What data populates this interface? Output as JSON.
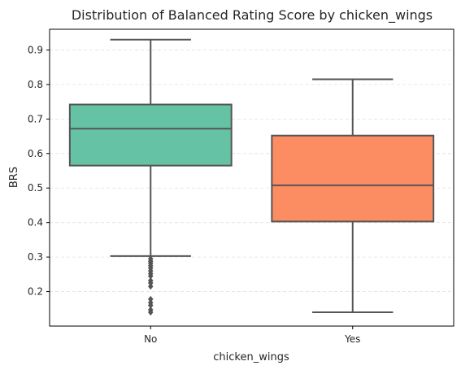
{
  "chart_data": {
    "type": "box",
    "title": "Distribution of Balanced Rating Score by chicken_wings",
    "xlabel": "chicken_wings",
    "ylabel": "BRS",
    "categories": [
      "No",
      "Yes"
    ],
    "ylim": [
      0.1,
      0.96
    ],
    "yticks": [
      0.2,
      0.3,
      0.4,
      0.5,
      0.6,
      0.7,
      0.8,
      0.9
    ],
    "grid": "y dashed",
    "colors": [
      "#66c2a5",
      "#fc8d62"
    ],
    "line_color": "#555555",
    "boxes": [
      {
        "category": "No",
        "whisker_low": 0.303,
        "q1": 0.565,
        "median": 0.672,
        "q3": 0.742,
        "whisker_high": 0.93,
        "outliers": [
          0.295,
          0.288,
          0.282,
          0.275,
          0.268,
          0.26,
          0.252,
          0.245,
          0.232,
          0.225,
          0.215,
          0.178,
          0.168,
          0.16,
          0.147,
          0.14
        ]
      },
      {
        "category": "Yes",
        "whisker_low": 0.14,
        "q1": 0.403,
        "median": 0.508,
        "q3": 0.652,
        "whisker_high": 0.815,
        "outliers": []
      }
    ]
  }
}
